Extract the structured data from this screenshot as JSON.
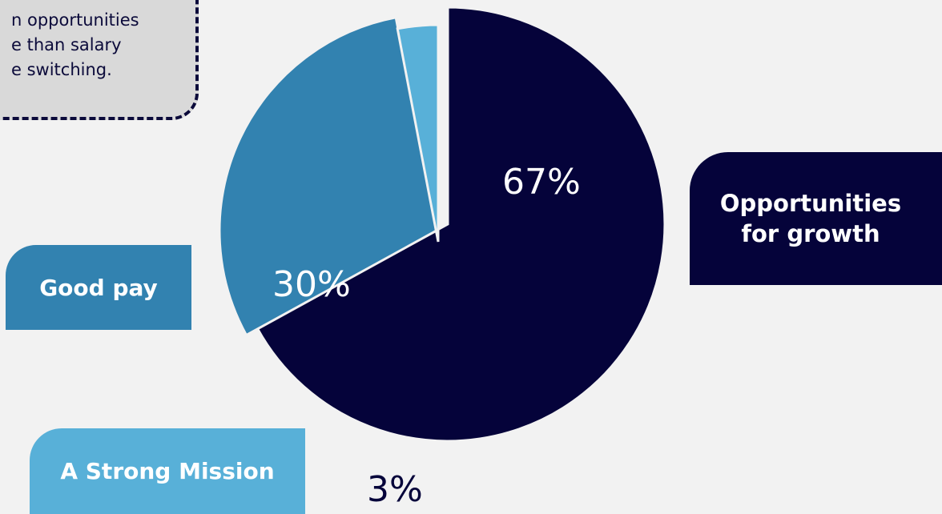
{
  "callout": {
    "lines": [
      "n opportunities",
      "e than salary",
      "e switching."
    ]
  },
  "chart_data": {
    "type": "pie",
    "title": "",
    "slices": [
      {
        "label": "Opportunities for growth",
        "label_lines": [
          "Opportunities",
          "for growth"
        ],
        "value": 67,
        "value_label": "67%",
        "color": "#05033a"
      },
      {
        "label": "Good pay",
        "value": 30,
        "value_label": "30%",
        "color": "#3282b0"
      },
      {
        "label": "A  Strong Mission",
        "value": 3,
        "value_label": "3%",
        "color": "#58b0d8"
      }
    ]
  }
}
